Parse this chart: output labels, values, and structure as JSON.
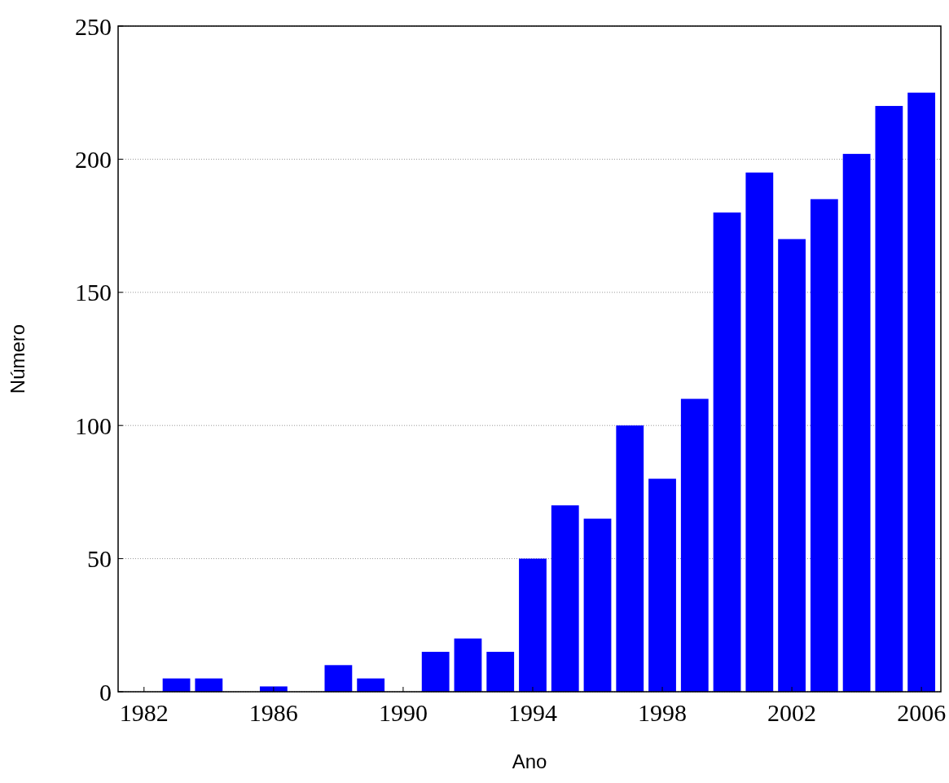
{
  "chart_data": {
    "type": "bar",
    "xlabel": "Ano",
    "ylabel": "Número",
    "x": [
      1983,
      1984,
      1986,
      1988,
      1989,
      1991,
      1992,
      1993,
      1994,
      1995,
      1996,
      1997,
      1998,
      1999,
      2000,
      2001,
      2002,
      2003,
      2004,
      2005,
      2006
    ],
    "values": [
      5,
      5,
      2,
      10,
      5,
      15,
      20,
      15,
      50,
      70,
      65,
      100,
      80,
      110,
      180,
      195,
      170,
      185,
      202,
      220,
      225
    ],
    "color": "#0000ff",
    "xlim": [
      1981.2,
      2006.6
    ],
    "xticks": [
      1982,
      1986,
      1990,
      1994,
      1998,
      2002,
      2006
    ],
    "ylim": [
      0,
      250
    ],
    "yticks": [
      0,
      50,
      100,
      150,
      200,
      250
    ],
    "grid": "y"
  }
}
